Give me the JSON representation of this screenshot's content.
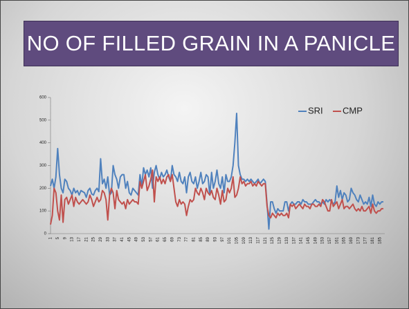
{
  "chart_data": {
    "type": "line",
    "title": "NO OF FILLED GRAIN IN A PANICLE",
    "categories": [
      1,
      null,
      null,
      null,
      5,
      null,
      null,
      null,
      9,
      null,
      null,
      null,
      13,
      null,
      null,
      null,
      17,
      null,
      null,
      null,
      21,
      null,
      null,
      null,
      25,
      null,
      null,
      null,
      29,
      null,
      null,
      null,
      33,
      null,
      null,
      null,
      37,
      null,
      null,
      null,
      41,
      null,
      null,
      null,
      45,
      null,
      null,
      null,
      49,
      null,
      null,
      null,
      53,
      null,
      null,
      null,
      57,
      null,
      null,
      null,
      61,
      null,
      null,
      null,
      65,
      null,
      null,
      null,
      69,
      null,
      null,
      null,
      73,
      null,
      null,
      null,
      77,
      null,
      null,
      null,
      81,
      null,
      null,
      null,
      85,
      null,
      null,
      null,
      89,
      null,
      null,
      null,
      93,
      null,
      null,
      null,
      97,
      null,
      null,
      null,
      101,
      null,
      null,
      null,
      105,
      null,
      null,
      null,
      109,
      null,
      null,
      null,
      113,
      null,
      null,
      null,
      117,
      null,
      null,
      null,
      121,
      null,
      null,
      null,
      125,
      null,
      null,
      null,
      129,
      null,
      null,
      null,
      133,
      null,
      null,
      null,
      137,
      null,
      null,
      null,
      141,
      null,
      null,
      null,
      145,
      null,
      null,
      null,
      149,
      null,
      null,
      null,
      153,
      null,
      null,
      null,
      157,
      null,
      null,
      null,
      161,
      null,
      null,
      null,
      165,
      null,
      null,
      null,
      169,
      null,
      null,
      null,
      173,
      null,
      null,
      null,
      177,
      null,
      null,
      null,
      181,
      null,
      null,
      null,
      185,
      null,
      null
    ],
    "series": [
      {
        "name": "SRI",
        "color": "#4f81bd",
        "values": [
          210,
          240,
          200,
          250,
          375,
          260,
          200,
          180,
          240,
          230,
          200,
          190,
          170,
          200,
          180,
          190,
          170,
          190,
          185,
          180,
          160,
          190,
          200,
          175,
          170,
          190,
          200,
          185,
          330,
          220,
          240,
          200,
          250,
          170,
          180,
          300,
          260,
          240,
          200,
          250,
          260,
          260,
          200,
          230,
          180,
          170,
          200,
          190,
          180,
          170,
          260,
          210,
          290,
          260,
          280,
          250,
          290,
          200,
          270,
          300,
          260,
          240,
          270,
          250,
          260,
          280,
          250,
          230,
          300,
          260,
          250,
          230,
          270,
          230,
          220,
          250,
          180,
          250,
          270,
          230,
          220,
          250,
          200,
          230,
          270,
          220,
          230,
          260,
          250,
          170,
          270,
          200,
          230,
          280,
          220,
          200,
          250,
          180,
          260,
          230,
          230,
          250,
          300,
          400,
          530,
          300,
          260,
          240,
          240,
          230,
          240,
          230,
          240,
          230,
          220,
          230,
          240,
          220,
          230,
          240,
          230,
          130,
          20,
          140,
          140,
          110,
          90,
          110,
          100,
          100,
          100,
          140,
          140,
          100,
          130,
          140,
          130,
          130,
          140,
          140,
          130,
          150,
          140,
          140,
          130,
          130,
          130,
          140,
          150,
          140,
          140,
          130,
          140,
          130,
          150,
          140,
          150,
          140,
          130,
          140,
          210,
          160,
          190,
          150,
          180,
          170,
          140,
          150,
          200,
          180,
          170,
          150,
          140,
          170,
          150,
          130,
          140,
          130,
          160,
          120,
          170,
          130,
          120,
          140,
          130,
          140,
          140
        ]
      },
      {
        "name": "CMP",
        "color": "#c0504d",
        "values": [
          40,
          80,
          200,
          180,
          100,
          60,
          170,
          50,
          150,
          160,
          130,
          150,
          170,
          120,
          160,
          140,
          130,
          140,
          150,
          140,
          130,
          140,
          170,
          150,
          120,
          140,
          160,
          140,
          150,
          190,
          180,
          150,
          60,
          170,
          200,
          180,
          110,
          190,
          150,
          140,
          130,
          140,
          110,
          150,
          130,
          140,
          150,
          140,
          140,
          130,
          230,
          200,
          230,
          260,
          190,
          210,
          240,
          280,
          140,
          250,
          230,
          250,
          220,
          240,
          220,
          250,
          260,
          230,
          260,
          200,
          140,
          120,
          150,
          130,
          140,
          130,
          80,
          120,
          150,
          140,
          150,
          200,
          180,
          170,
          200,
          180,
          150,
          200,
          180,
          170,
          190,
          160,
          150,
          200,
          170,
          130,
          190,
          140,
          150,
          200,
          180,
          200,
          250,
          160,
          170,
          200,
          250,
          220,
          230,
          210,
          220,
          220,
          230,
          210,
          220,
          210,
          230,
          220,
          210,
          220,
          220,
          120,
          80,
          70,
          90,
          80,
          70,
          90,
          80,
          90,
          80,
          80,
          90,
          70,
          130,
          120,
          130,
          110,
          120,
          130,
          120,
          110,
          130,
          120,
          120,
          110,
          130,
          130,
          120,
          120,
          130,
          120,
          150,
          140,
          120,
          100,
          100,
          150,
          120,
          130,
          140,
          110,
          130,
          150,
          110,
          120,
          120,
          110,
          120,
          130,
          110,
          100,
          110,
          100,
          120,
          100,
          100,
          110,
          120,
          90,
          130,
          100,
          90,
          100,
          100,
          110,
          110
        ]
      }
    ],
    "ylim": [
      0,
      600
    ],
    "yticks": [
      0,
      100,
      200,
      300,
      400,
      500,
      600
    ],
    "legend": "top-right"
  }
}
